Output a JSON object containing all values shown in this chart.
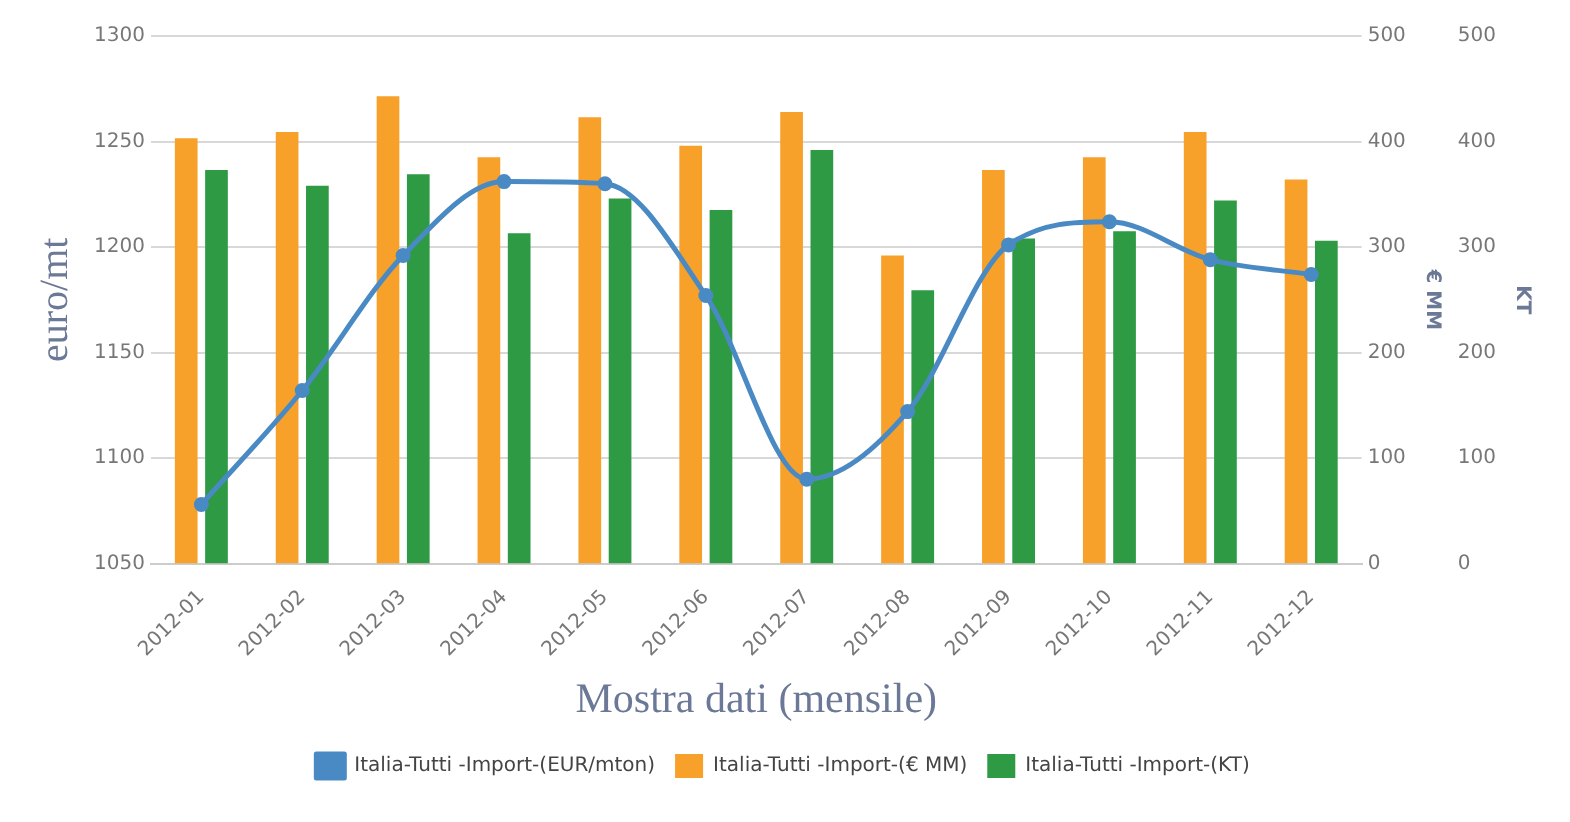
{
  "chart_data": {
    "type": "bar",
    "xlabel": "Mostra dati (mensile)",
    "ylabel": "euro/mt",
    "y2label": "€ MM",
    "y3label": "KT",
    "categories": [
      "2012-01",
      "2012-02",
      "2012-03",
      "2012-04",
      "2012-05",
      "2012-06",
      "2012-07",
      "2012-08",
      "2012-09",
      "2012-10",
      "2012-11",
      "2012-12"
    ],
    "series": [
      {
        "name": "Italia-Tutti -Import-(EUR/mton)",
        "type": "line",
        "axis": "y",
        "color": "#4a8ac4",
        "values": [
          1078,
          1132,
          1196,
          1231,
          1230,
          1177,
          1090,
          1122,
          1201,
          1212,
          1194,
          1187
        ]
      },
      {
        "name": "Italia-Tutti -Import-(€ MM)",
        "axis": "y2",
        "color": "#f7a12b",
        "values": [
          403,
          409,
          443,
          385,
          423,
          396,
          428,
          292,
          373,
          385,
          409,
          364
        ]
      },
      {
        "name": "Italia-Tutti -Import-(KT)",
        "axis": "y3",
        "color": "#2e9a44",
        "values": [
          373,
          358,
          369,
          313,
          346,
          335,
          392,
          259,
          308,
          315,
          344,
          306
        ]
      }
    ],
    "ylim": [
      1050,
      1300
    ],
    "yticks": [
      1050,
      1100,
      1150,
      1200,
      1250,
      1300
    ],
    "y2lim": [
      0,
      500
    ],
    "y2ticks": [
      0,
      100,
      200,
      300,
      400,
      500
    ],
    "y3lim": [
      0,
      500
    ],
    "y3ticks": [
      0,
      100,
      200,
      300,
      400,
      500
    ],
    "grid": "y",
    "legend": "bottom",
    "marker": "circle",
    "line_style": "solid"
  }
}
